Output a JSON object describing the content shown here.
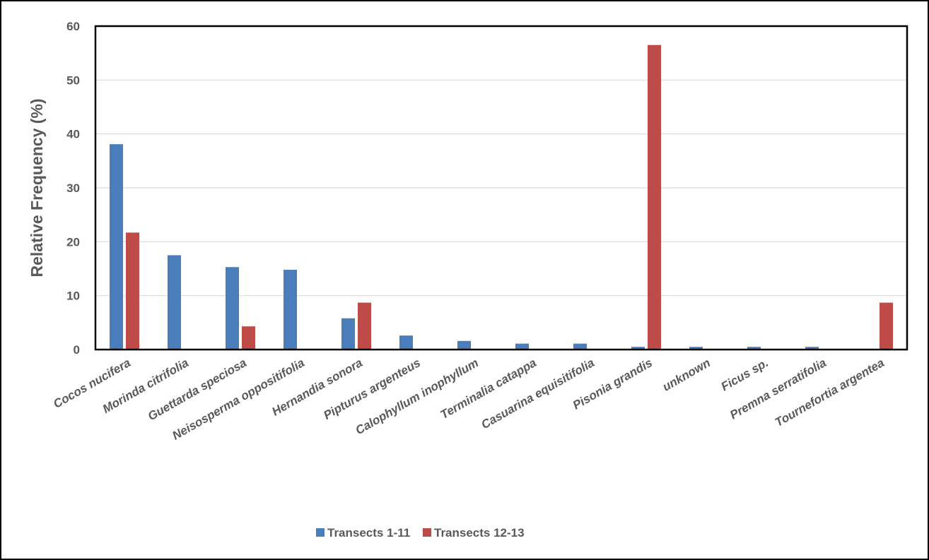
{
  "chart_data": {
    "type": "bar",
    "title": "",
    "xlabel": "",
    "ylabel": "Relative Frequency (%)",
    "ylim": [
      0,
      60
    ],
    "yticks": [
      0,
      10,
      20,
      30,
      40,
      50,
      60
    ],
    "grid": true,
    "legend_position": "bottom",
    "categories": [
      "Cocos nucifera",
      "Morinda citrifolia",
      "Guettarda speciosa",
      "Neisosperma oppositifolia",
      "Hernandia sonora",
      "Pipturus argenteus",
      "Calophyllum inophyllum",
      "Terminalia catappa",
      "Casuarina equisitifolia",
      "Pisonia grandis",
      "unknown",
      "Ficus sp.",
      "Premna serratifolia",
      "Tournefortia argentea"
    ],
    "series": [
      {
        "name": "Transects 1-11",
        "color": "#4a7ebb",
        "values": [
          38.1,
          17.5,
          15.3,
          14.8,
          5.8,
          2.6,
          1.6,
          1.1,
          1.1,
          0.5,
          0.5,
          0.5,
          0.5,
          0
        ]
      },
      {
        "name": "Transects 12-13",
        "color": "#be4b48",
        "values": [
          21.7,
          0,
          4.3,
          0,
          8.7,
          0,
          0,
          0,
          0,
          56.5,
          0,
          0,
          0,
          8.7
        ]
      }
    ]
  }
}
